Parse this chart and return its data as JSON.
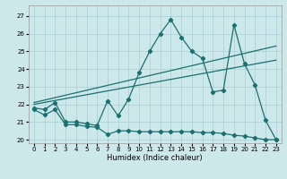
{
  "background_color": "#cde8eb",
  "grid_color": "#aacdd2",
  "line_color": "#1a7070",
  "xlabel": "Humidex (Indice chaleur)",
  "xlim": [
    -0.5,
    23.5
  ],
  "ylim": [
    19.8,
    27.6
  ],
  "yticks": [
    20,
    21,
    22,
    23,
    24,
    25,
    26,
    27
  ],
  "xticks": [
    0,
    1,
    2,
    3,
    4,
    5,
    6,
    7,
    8,
    9,
    10,
    11,
    12,
    13,
    14,
    15,
    16,
    17,
    18,
    19,
    20,
    21,
    22,
    23
  ],
  "series_low": {
    "x": [
      0,
      1,
      2,
      3,
      4,
      5,
      6,
      7,
      8,
      9,
      10,
      11,
      12,
      13,
      14,
      15,
      16,
      17,
      18,
      19,
      20,
      21,
      22,
      23
    ],
    "y": [
      21.7,
      21.4,
      21.7,
      20.85,
      20.85,
      20.75,
      20.7,
      20.3,
      20.5,
      20.5,
      20.45,
      20.45,
      20.45,
      20.45,
      20.45,
      20.45,
      20.4,
      20.4,
      20.35,
      20.25,
      20.2,
      20.1,
      20.0,
      20.0
    ]
  },
  "series_main": {
    "x": [
      0,
      1,
      2,
      3,
      4,
      5,
      6,
      7,
      8,
      9,
      10,
      11,
      12,
      13,
      14,
      15,
      16,
      17,
      18,
      19,
      20,
      21,
      22,
      23
    ],
    "y": [
      21.8,
      21.7,
      22.1,
      21.0,
      21.0,
      20.9,
      20.8,
      22.2,
      21.35,
      22.3,
      23.8,
      25.0,
      26.0,
      26.8,
      25.8,
      25.0,
      24.6,
      22.7,
      22.8,
      26.5,
      24.3,
      23.1,
      21.1,
      20.0
    ]
  },
  "trend1_x": [
    0,
    23
  ],
  "trend1_y": [
    22.0,
    24.5
  ],
  "trend2_x": [
    0,
    23
  ],
  "trend2_y": [
    22.1,
    25.3
  ]
}
